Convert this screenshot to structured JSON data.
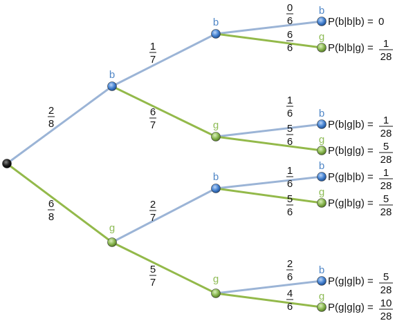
{
  "colors": {
    "blue_line": "#9bb4d6",
    "green_line": "#93b94a",
    "blue_node": "#4a86d4",
    "green_node": "#8dbb55",
    "root_node": "#222222",
    "blue_text": "#4f86c6",
    "green_text": "#8dbb55"
  },
  "root": {
    "id": "root"
  },
  "nodes": [
    {
      "id": "L1_b",
      "letter": "b",
      "color": "blue"
    },
    {
      "id": "L1_g",
      "letter": "g",
      "color": "green"
    },
    {
      "id": "L2_bb",
      "letter": "b",
      "color": "blue"
    },
    {
      "id": "L2_bg",
      "letter": "g",
      "color": "green"
    },
    {
      "id": "L2_gb",
      "letter": "b",
      "color": "blue"
    },
    {
      "id": "L2_gg",
      "letter": "g",
      "color": "green"
    }
  ],
  "edges": [
    {
      "from": "root",
      "to": "L1_b",
      "color": "blue",
      "num": "2",
      "den": "8"
    },
    {
      "from": "root",
      "to": "L1_g",
      "color": "green",
      "num": "6",
      "den": "8"
    },
    {
      "from": "L1_b",
      "to": "L2_bb",
      "color": "blue",
      "num": "1",
      "den": "7"
    },
    {
      "from": "L1_b",
      "to": "L2_bg",
      "color": "green",
      "num": "6",
      "den": "7"
    },
    {
      "from": "L1_g",
      "to": "L2_gb",
      "color": "blue",
      "num": "2",
      "den": "7"
    },
    {
      "from": "L1_g",
      "to": "L2_gg",
      "color": "green",
      "num": "5",
      "den": "7"
    }
  ],
  "leaves": [
    {
      "parent": "L2_bb",
      "letter": "b",
      "color": "blue",
      "num": "0",
      "den": "6",
      "prob_label": "P(b|b|b) = ",
      "prob_value": "0"
    },
    {
      "parent": "L2_bb",
      "letter": "g",
      "color": "green",
      "num": "6",
      "den": "6",
      "prob_label": "P(b|b|g) = ",
      "prob_num": "1",
      "prob_den": "28"
    },
    {
      "parent": "L2_bg",
      "letter": "b",
      "color": "blue",
      "num": "1",
      "den": "6",
      "prob_label": "P(b|g|b) = ",
      "prob_num": "1",
      "prob_den": "28"
    },
    {
      "parent": "L2_bg",
      "letter": "g",
      "color": "green",
      "num": "5",
      "den": "6",
      "prob_label": "P(b|g|g) = ",
      "prob_num": "5",
      "prob_den": "28"
    },
    {
      "parent": "L2_gb",
      "letter": "b",
      "color": "blue",
      "num": "1",
      "den": "6",
      "prob_label": "P(g|b|b) = ",
      "prob_num": "1",
      "prob_den": "28"
    },
    {
      "parent": "L2_gb",
      "letter": "g",
      "color": "green",
      "num": "5",
      "den": "6",
      "prob_label": "P(g|b|g) = ",
      "prob_num": "5",
      "prob_den": "28"
    },
    {
      "parent": "L2_gg",
      "letter": "b",
      "color": "blue",
      "num": "2",
      "den": "6",
      "prob_label": "P(g|g|b) = ",
      "prob_num": "5",
      "prob_den": "28"
    },
    {
      "parent": "L2_gg",
      "letter": "g",
      "color": "green",
      "num": "4",
      "den": "6",
      "prob_label": "P(g|g|g) = ",
      "prob_num": "10",
      "prob_den": "28"
    }
  ]
}
